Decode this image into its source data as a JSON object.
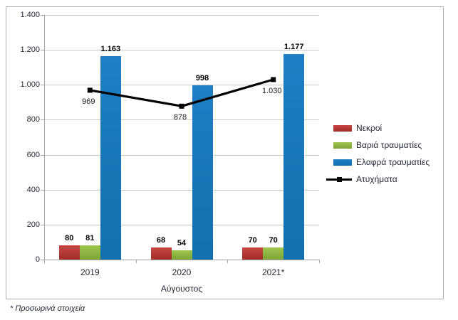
{
  "chart_data": {
    "type": "bar",
    "subtype": "clustered-bar-with-line-overlay",
    "categories": [
      "2019",
      "2020",
      "2021*"
    ],
    "series": [
      {
        "name": "Νεκροί",
        "kind": "bar",
        "values": [
          80,
          68,
          70
        ],
        "labels": [
          "80",
          "68",
          "70"
        ],
        "color_top": "#c94743",
        "color_bottom": "#9e2b27"
      },
      {
        "name": "Βαριά τραυματίες",
        "kind": "bar",
        "values": [
          81,
          54,
          70
        ],
        "labels": [
          "81",
          "54",
          "70"
        ],
        "color_top": "#9fc74c",
        "color_bottom": "#7da339"
      },
      {
        "name": "Ελαφρά τραυματίες",
        "kind": "bar",
        "values": [
          1163,
          998,
          1177
        ],
        "labels": [
          "1.163",
          "998",
          "1.177"
        ],
        "color_top": "#1e7fc4",
        "color_bottom": "#146fae"
      },
      {
        "name": "Ατυχήματα",
        "kind": "line",
        "values": [
          969,
          878,
          1030
        ],
        "labels": [
          "969",
          "878",
          "1.030"
        ],
        "color": "#000000"
      }
    ],
    "title": "",
    "xlabel": "Αύγουστος",
    "ylabel": "",
    "ylim": [
      0,
      1400
    ],
    "ytick_step": 200,
    "ytick_labels": [
      "0",
      "200",
      "400",
      "600",
      "800",
      "1.000",
      "1.200",
      "1.400"
    ],
    "grid": true,
    "legend_position": "right"
  },
  "footnote": "* Προσωρινά στοιχεία"
}
